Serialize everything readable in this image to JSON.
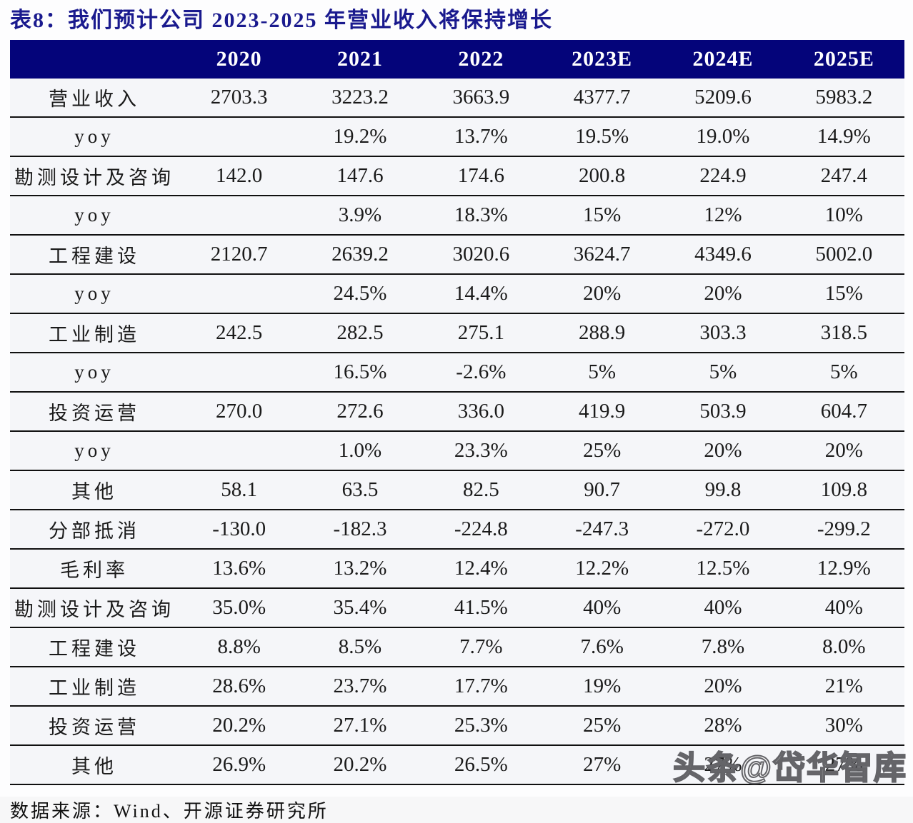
{
  "title": "表8：我们预计公司 2023-2025 年营业收入将保持增长",
  "table": {
    "corner_label": "",
    "columns": [
      "2020",
      "2021",
      "2022",
      "2023E",
      "2024E",
      "2025E"
    ],
    "rows": [
      {
        "label": "营业收入",
        "values": [
          "2703.3",
          "3223.2",
          "3663.9",
          "4377.7",
          "5209.6",
          "5983.2"
        ]
      },
      {
        "label": "yoy",
        "values": [
          "",
          "19.2%",
          "13.7%",
          "19.5%",
          "19.0%",
          "14.9%"
        ]
      },
      {
        "label": "勘测设计及咨询",
        "values": [
          "142.0",
          "147.6",
          "174.6",
          "200.8",
          "224.9",
          "247.4"
        ]
      },
      {
        "label": "yoy",
        "values": [
          "",
          "3.9%",
          "18.3%",
          "15%",
          "12%",
          "10%"
        ]
      },
      {
        "label": "工程建设",
        "values": [
          "2120.7",
          "2639.2",
          "3020.6",
          "3624.7",
          "4349.6",
          "5002.0"
        ]
      },
      {
        "label": "yoy",
        "values": [
          "",
          "24.5%",
          "14.4%",
          "20%",
          "20%",
          "15%"
        ]
      },
      {
        "label": "工业制造",
        "values": [
          "242.5",
          "282.5",
          "275.1",
          "288.9",
          "303.3",
          "318.5"
        ]
      },
      {
        "label": "yoy",
        "values": [
          "",
          "16.5%",
          "-2.6%",
          "5%",
          "5%",
          "5%"
        ]
      },
      {
        "label": "投资运营",
        "values": [
          "270.0",
          "272.6",
          "336.0",
          "419.9",
          "503.9",
          "604.7"
        ]
      },
      {
        "label": "yoy",
        "values": [
          "",
          "1.0%",
          "23.3%",
          "25%",
          "20%",
          "20%"
        ]
      },
      {
        "label": "其他",
        "values": [
          "58.1",
          "63.5",
          "82.5",
          "90.7",
          "99.8",
          "109.8"
        ]
      },
      {
        "label": "分部抵消",
        "values": [
          "-130.0",
          "-182.3",
          "-224.8",
          "-247.3",
          "-272.0",
          "-299.2"
        ]
      },
      {
        "label": "毛利率",
        "values": [
          "13.6%",
          "13.2%",
          "12.4%",
          "12.2%",
          "12.5%",
          "12.9%"
        ]
      },
      {
        "label": "勘测设计及咨询",
        "values": [
          "35.0%",
          "35.4%",
          "41.5%",
          "40%",
          "40%",
          "40%"
        ]
      },
      {
        "label": "工程建设",
        "values": [
          "8.8%",
          "8.5%",
          "7.7%",
          "7.6%",
          "7.8%",
          "8.0%"
        ]
      },
      {
        "label": "工业制造",
        "values": [
          "28.6%",
          "23.7%",
          "17.7%",
          "19%",
          "20%",
          "21%"
        ]
      },
      {
        "label": "投资运营",
        "values": [
          "20.2%",
          "27.1%",
          "25.3%",
          "25%",
          "28%",
          "30%"
        ]
      },
      {
        "label": "其他",
        "values": [
          "26.9%",
          "20.2%",
          "26.5%",
          "27%",
          "27%",
          "27%"
        ]
      }
    ]
  },
  "footer": {
    "source": "数据来源：Wind、开源证券研究所"
  },
  "watermark": "头条@岱华智库",
  "colors": {
    "header_bg": "#04047a",
    "title_text": "#1a1a8e",
    "row_bg": "#f5f6f9",
    "border": "#101010"
  }
}
